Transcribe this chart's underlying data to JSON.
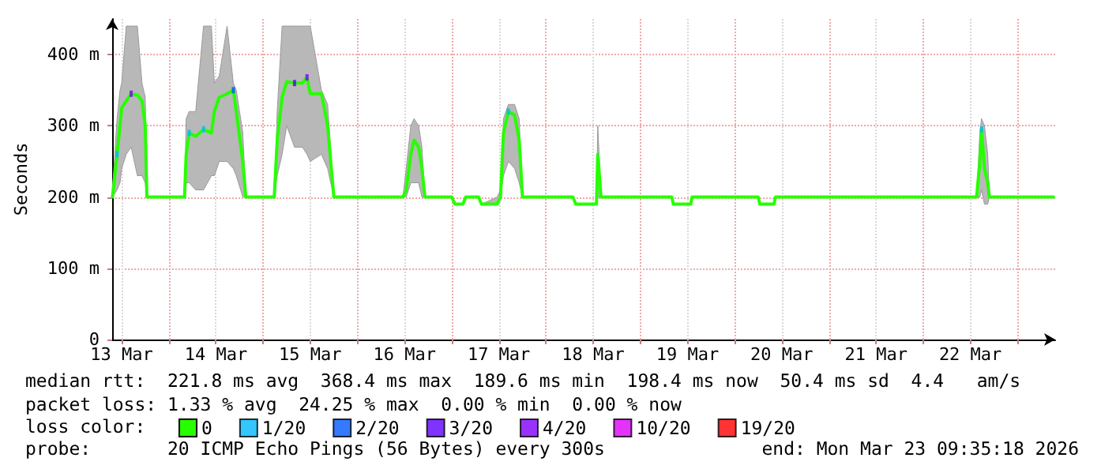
{
  "chart_data": {
    "type": "line",
    "ylabel": "Seconds",
    "legend_title": "loss color:",
    "legend": "bottom",
    "grid": true,
    "xlim": [
      "2026-03-13T09:35",
      "2026-03-23T09:35"
    ],
    "xticks": [
      {
        "value": "2026-03-13T12:00",
        "label": "13 Mar"
      },
      {
        "value": "2026-03-14T00:00",
        "label": null
      },
      {
        "value": "2026-03-14T12:00",
        "label": "14 Mar"
      },
      {
        "value": "2026-03-15T00:00",
        "label": null
      },
      {
        "value": "2026-03-15T12:00",
        "label": "15 Mar"
      },
      {
        "value": "2026-03-16T00:00",
        "label": null
      },
      {
        "value": "2026-03-16T12:00",
        "label": "16 Mar"
      },
      {
        "value": "2026-03-17T00:00",
        "label": null
      },
      {
        "value": "2026-03-17T12:00",
        "label": "17 Mar"
      },
      {
        "value": "2026-03-18T00:00",
        "label": null
      },
      {
        "value": "2026-03-18T12:00",
        "label": "18 Mar"
      },
      {
        "value": "2026-03-19T00:00",
        "label": null
      },
      {
        "value": "2026-03-19T12:00",
        "label": "19 Mar"
      },
      {
        "value": "2026-03-20T00:00",
        "label": null
      },
      {
        "value": "2026-03-20T12:00",
        "label": "20 Mar"
      },
      {
        "value": "2026-03-21T00:00",
        "label": null
      },
      {
        "value": "2026-03-21T12:00",
        "label": "21 Mar"
      },
      {
        "value": "2026-03-22T00:00",
        "label": null
      },
      {
        "value": "2026-03-22T12:00",
        "label": "22 Mar"
      },
      {
        "value": "2026-03-23T00:00",
        "label": null
      }
    ],
    "ylim": [
      0,
      450
    ],
    "yticks": [
      {
        "value": 0,
        "label": "0"
      },
      {
        "value": 100,
        "label": "100 m"
      },
      {
        "value": 200,
        "label": "200 m"
      },
      {
        "value": 300,
        "label": "300 m"
      },
      {
        "value": 400,
        "label": "400 m"
      }
    ],
    "annotations": [
      "median rtt:  221.8 ms avg  368.4 ms max  189.6 ms min  198.4 ms now  50.4 ms sd  4.4   am/s",
      "packet loss: 1.33 % avg  24.25 % max  0.00 % min  0.00 % now",
      "probe:       20 ICMP Echo Pings (56 Bytes) every 300s",
      "end: Mon Mar 23 09:35:18 2026"
    ],
    "series": [
      {
        "name": "0",
        "color": "#26ff00",
        "x": [
          "2026-03-13T09:40",
          "2026-03-13T10:50",
          "2026-03-13T11:35",
          "2026-03-13T12:00",
          "2026-03-13T13:10",
          "2026-03-13T14:25",
          "2026-03-13T16:00",
          "2026-03-13T17:10",
          "2026-03-13T18:00",
          "2026-03-13T18:25",
          "2026-03-14T04:00",
          "2026-03-14T04:25",
          "2026-03-14T05:10",
          "2026-03-14T06:50",
          "2026-03-14T08:50",
          "2026-03-14T10:50",
          "2026-03-14T11:35",
          "2026-03-14T12:50",
          "2026-03-14T14:50",
          "2026-03-14T16:25",
          "2026-03-14T17:10",
          "2026-03-14T18:50",
          "2026-03-14T19:35",
          "2026-03-15T02:50",
          "2026-03-15T03:35",
          "2026-03-15T04:50",
          "2026-03-15T06:00",
          "2026-03-15T08:00",
          "2026-03-15T10:00",
          "2026-03-15T11:10",
          "2026-03-15T12:00",
          "2026-03-15T14:50",
          "2026-03-15T16:25",
          "2026-03-15T18:00",
          "2026-03-16T11:35",
          "2026-03-16T12:25",
          "2026-03-16T13:35",
          "2026-03-16T14:25",
          "2026-03-16T15:35",
          "2026-03-16T16:25",
          "2026-03-16T17:10",
          "2026-03-17T00:00",
          "2026-03-17T00:50",
          "2026-03-17T02:50",
          "2026-03-17T03:35",
          "2026-03-17T06:50",
          "2026-03-17T07:35",
          "2026-03-17T11:35",
          "2026-03-17T12:25",
          "2026-03-17T13:10",
          "2026-03-17T14:25",
          "2026-03-17T16:00",
          "2026-03-17T17:10",
          "2026-03-17T18:00",
          "2026-03-18T06:50",
          "2026-03-18T07:35",
          "2026-03-18T12:50",
          "2026-03-18T13:10",
          "2026-03-18T14:00",
          "2026-03-19T08:00",
          "2026-03-19T08:25",
          "2026-03-19T12:50",
          "2026-03-19T13:10",
          "2026-03-20T06:00",
          "2026-03-20T06:25",
          "2026-03-20T10:00",
          "2026-03-20T10:25",
          "2026-03-22T13:35",
          "2026-03-22T14:25",
          "2026-03-22T14:50",
          "2026-03-22T15:35",
          "2026-03-22T16:25",
          "2026-03-22T16:50",
          "2026-03-23T09:10"
        ],
        "values": [
          200,
          260,
          300,
          325,
          335,
          345,
          343,
          335,
          300,
          200,
          200,
          260,
          290,
          285,
          295,
          290,
          320,
          340,
          345,
          350,
          320,
          250,
          200,
          200,
          280,
          340,
          362,
          360,
          360,
          368,
          345,
          345,
          300,
          200,
          200,
          210,
          260,
          280,
          270,
          240,
          200,
          200,
          190,
          190,
          200,
          200,
          190,
          190,
          200,
          290,
          320,
          315,
          280,
          200,
          200,
          190,
          190,
          260,
          200,
          200,
          190,
          190,
          200,
          200,
          190,
          190,
          200,
          200,
          250,
          295,
          240,
          220,
          200,
          200
        ],
        "lower": [
          200,
          210,
          220,
          240,
          260,
          270,
          230,
          230,
          220,
          200,
          200,
          220,
          220,
          210,
          210,
          230,
          230,
          250,
          250,
          240,
          230,
          200,
          200,
          200,
          230,
          260,
          300,
          270,
          270,
          260,
          250,
          260,
          240,
          200,
          200,
          200,
          220,
          220,
          220,
          200,
          200,
          200,
          190,
          190,
          200,
          200,
          190,
          190,
          200,
          230,
          250,
          240,
          220,
          200,
          200,
          190,
          190,
          200,
          200,
          200,
          190,
          190,
          200,
          200,
          190,
          190,
          200,
          200,
          200,
          210,
          190,
          190,
          200,
          200
        ],
        "upper": [
          210,
          310,
          350,
          360,
          440,
          440,
          440,
          360,
          340,
          200,
          200,
          310,
          320,
          320,
          440,
          440,
          360,
          370,
          440,
          360,
          350,
          290,
          200,
          200,
          320,
          440,
          440,
          440,
          440,
          440,
          440,
          350,
          330,
          200,
          200,
          240,
          300,
          310,
          300,
          270,
          200,
          200,
          190,
          190,
          200,
          200,
          190,
          200,
          210,
          310,
          330,
          330,
          310,
          200,
          200,
          190,
          190,
          300,
          200,
          200,
          190,
          190,
          200,
          200,
          190,
          190,
          200,
          200,
          290,
          310,
          300,
          260,
          200,
          200
        ]
      },
      {
        "name": "1/20",
        "type": "scatter",
        "color": "#00b8ff",
        "x": [
          "2026-03-13T10:50",
          "2026-03-14T05:10",
          "2026-03-14T08:50",
          "2026-03-17T14:25",
          "2026-03-22T14:50"
        ],
        "values": [
          260,
          290,
          295,
          320,
          295
        ]
      },
      {
        "name": "2/20",
        "type": "scatter",
        "color": "#0059ff",
        "x": [
          "2026-03-14T16:25"
        ],
        "values": [
          350
        ]
      },
      {
        "name": "3/20",
        "type": "scatter",
        "color": "#5e00ff",
        "x": [
          "2026-03-15T08:00"
        ],
        "values": [
          360
        ]
      },
      {
        "name": "4/20",
        "type": "scatter",
        "color": "#7e00ff",
        "x": [
          "2026-03-13T14:25",
          "2026-03-15T11:10"
        ],
        "values": [
          345,
          368
        ]
      },
      {
        "name": "10/20",
        "type": "scatter",
        "color": "#dd00ff"
      },
      {
        "name": "19/20",
        "type": "scatter",
        "color": "#ff0000"
      }
    ]
  }
}
